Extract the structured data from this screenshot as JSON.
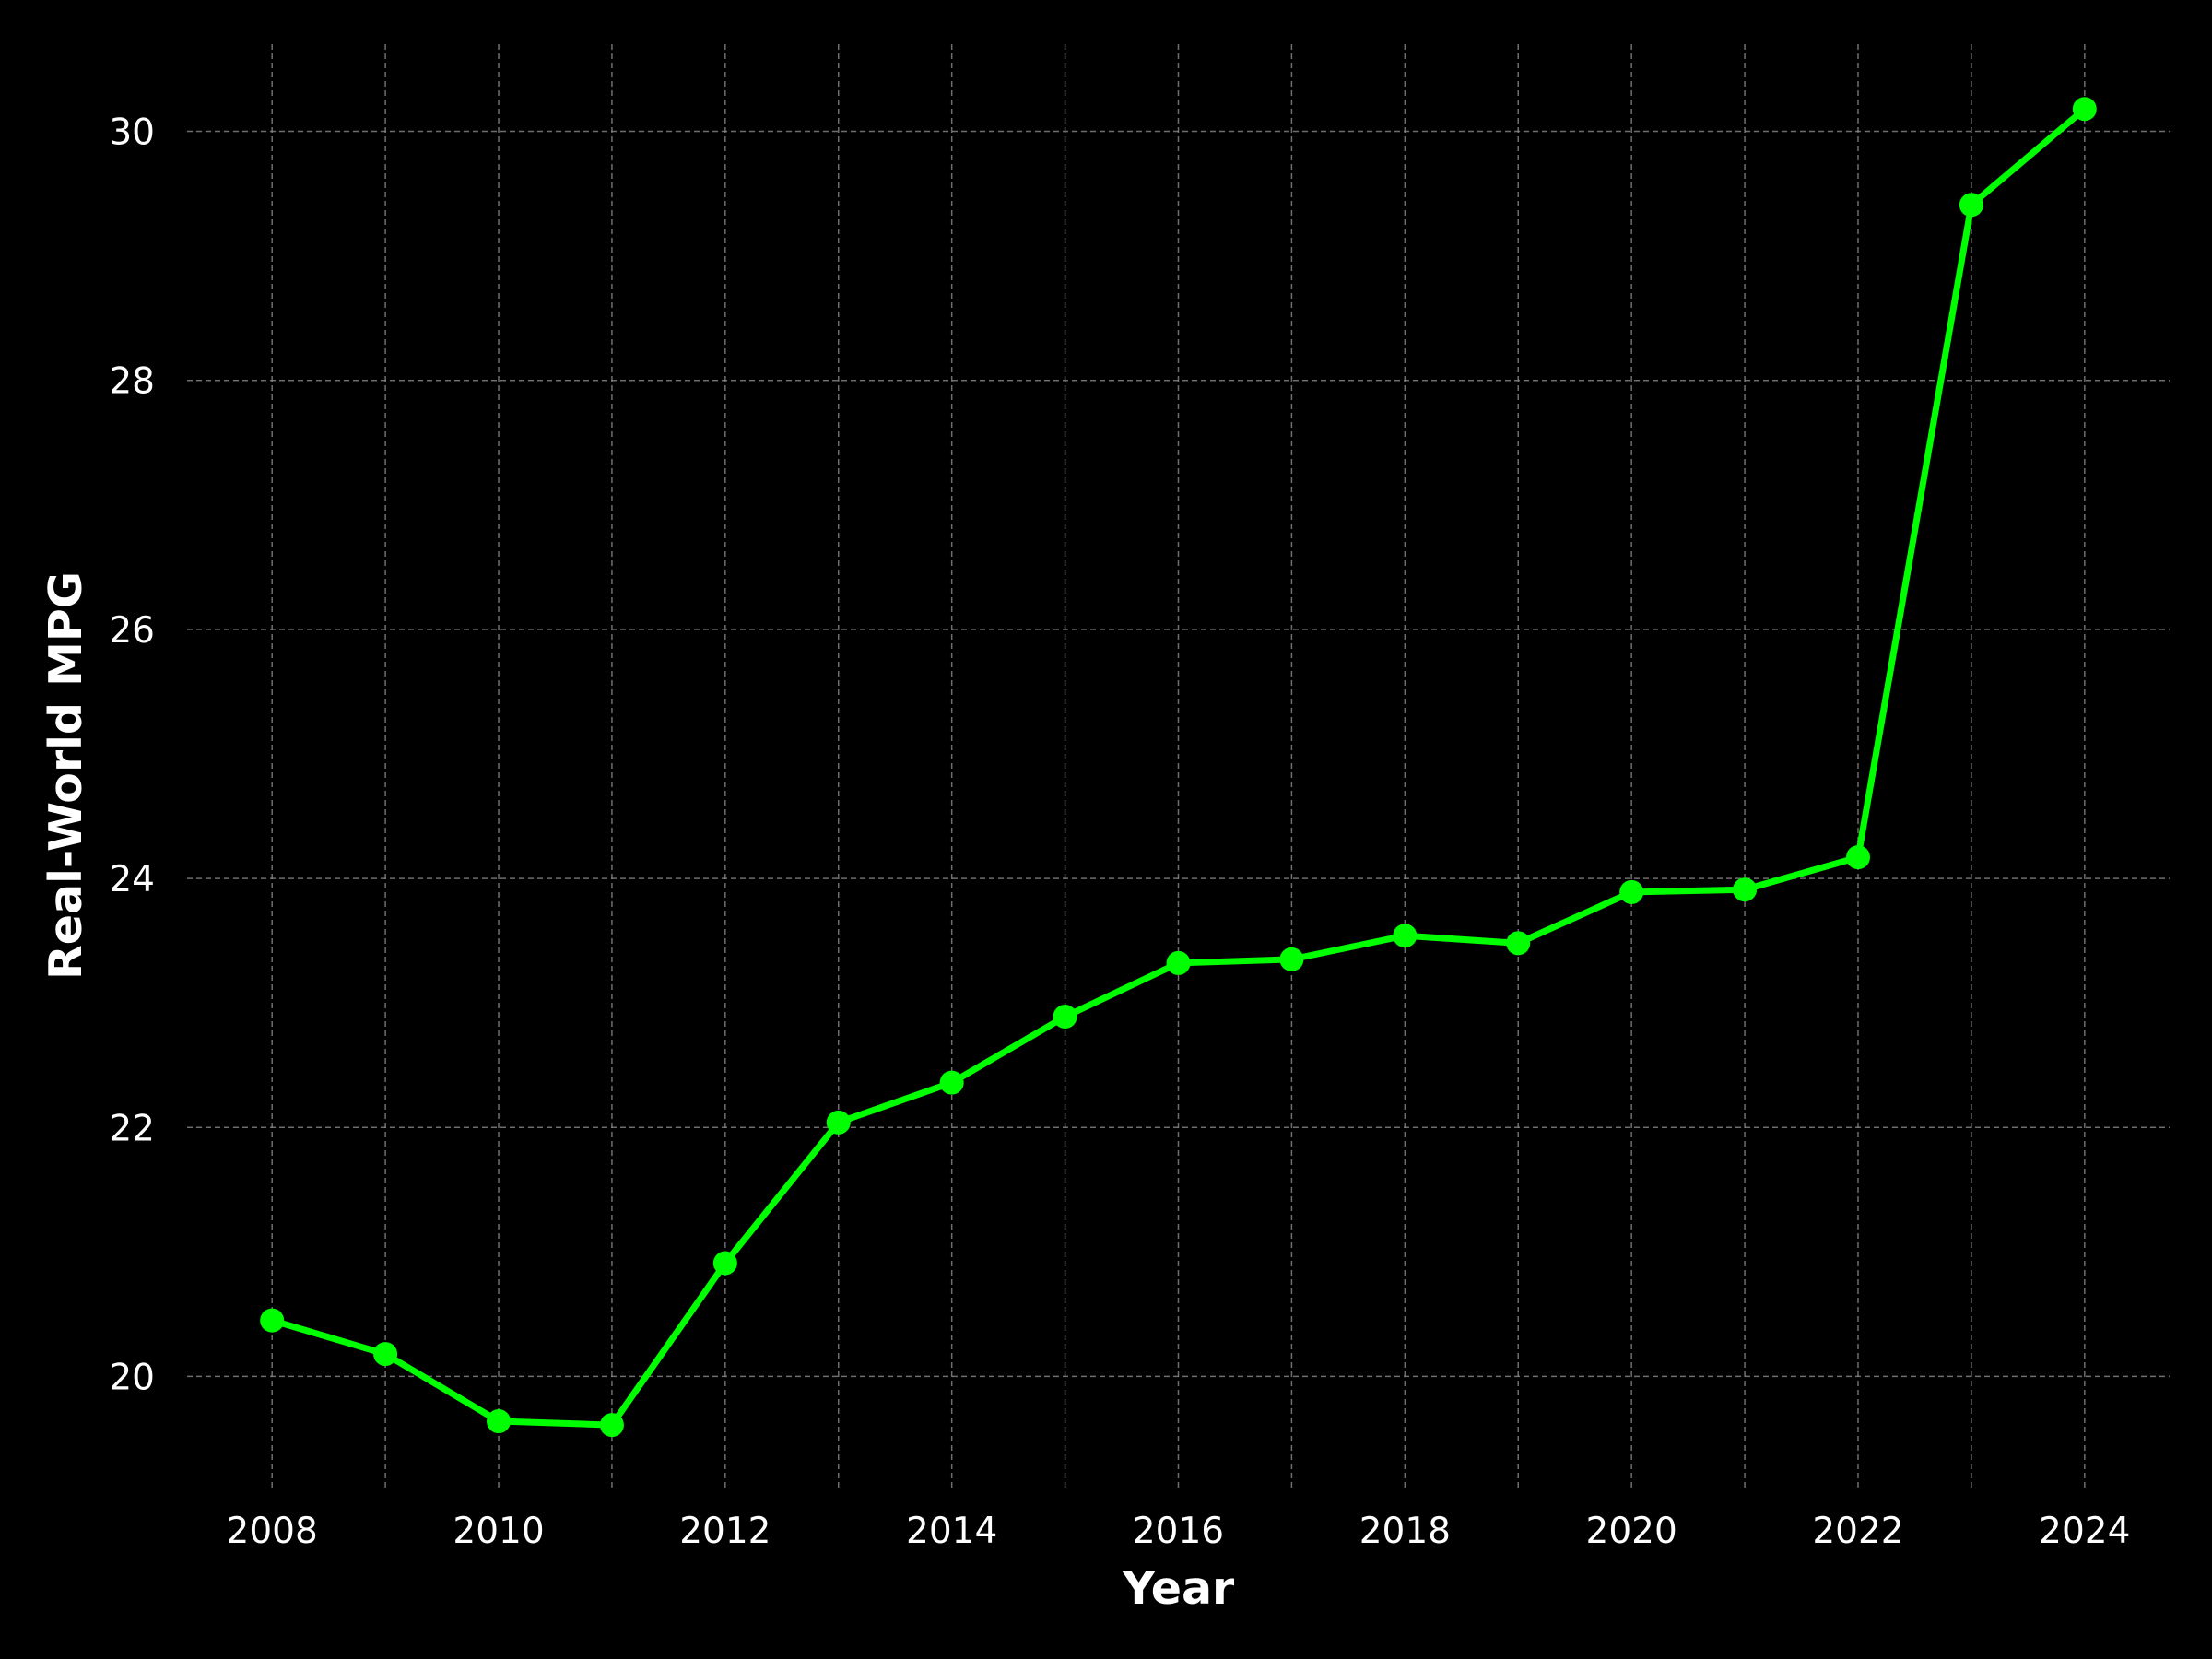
{
  "chart_data": {
    "type": "line",
    "x": [
      2008,
      2009,
      2010,
      2011,
      2012,
      2013,
      2014,
      2015,
      2016,
      2017,
      2018,
      2019,
      2020,
      2021,
      2022,
      2023,
      2024
    ],
    "series": [
      {
        "values": [
          20.45,
          20.18,
          19.64,
          19.61,
          20.91,
          22.04,
          22.36,
          22.89,
          23.32,
          23.35,
          23.54,
          23.48,
          23.89,
          23.91,
          24.17,
          29.41,
          30.18
        ]
      }
    ],
    "xlabel": "Year",
    "ylabel": "Real-World MPG",
    "x_ticks": [
      "2008",
      "2010",
      "2012",
      "2014",
      "2016",
      "2018",
      "2020",
      "2022",
      "2024"
    ],
    "y_ticks": [
      "20",
      "22",
      "24",
      "26",
      "28",
      "30"
    ],
    "xlim": [
      2007.25,
      2024.75
    ],
    "ylim": [
      19.1,
      30.7
    ],
    "grid": true,
    "line_color": "#00ff00",
    "background_color": "#000000",
    "text_color": "#ffffff"
  }
}
